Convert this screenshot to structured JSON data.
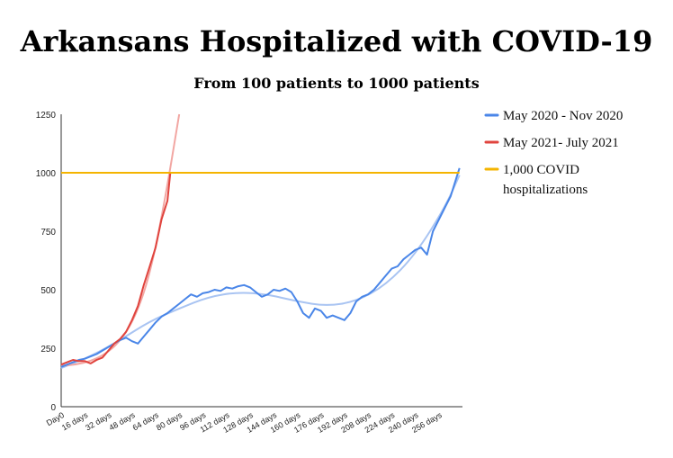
{
  "chart_data": {
    "type": "line",
    "title": "Arkansans Hospitalized with COVID-19",
    "subtitle": "From 100 patients to 1000 patients",
    "xlabel": "",
    "ylabel": "",
    "ylim": [
      0,
      1250
    ],
    "yticks": [
      "0",
      "250",
      "500",
      "750",
      "1000",
      "1250"
    ],
    "xlim": [
      0,
      272
    ],
    "xticks": [
      {
        "x": 0,
        "label": "Day0"
      },
      {
        "x": 16,
        "label": "16 days"
      },
      {
        "x": 32,
        "label": "32 days"
      },
      {
        "x": 48,
        "label": "48 days"
      },
      {
        "x": 64,
        "label": "64 days"
      },
      {
        "x": 80,
        "label": "80 days"
      },
      {
        "x": 96,
        "label": "96 days"
      },
      {
        "x": 112,
        "label": "112 days"
      },
      {
        "x": 128,
        "label": "128 days"
      },
      {
        "x": 144,
        "label": "144 days"
      },
      {
        "x": 160,
        "label": "160 days"
      },
      {
        "x": 176,
        "label": "176 days"
      },
      {
        "x": 192,
        "label": "192 days"
      },
      {
        "x": 208,
        "label": "208 days"
      },
      {
        "x": 224,
        "label": "224 days"
      },
      {
        "x": 240,
        "label": "240 days"
      },
      {
        "x": 256,
        "label": "256 days"
      }
    ],
    "grid": false,
    "legend_position": "right",
    "series": [
      {
        "name": "May 2020 - Nov 2020",
        "color": "#4a86e8",
        "x": [
          0,
          4,
          8,
          12,
          16,
          20,
          24,
          28,
          32,
          36,
          40,
          44,
          48,
          52,
          56,
          60,
          64,
          68,
          72,
          76,
          80,
          84,
          88,
          92,
          96,
          100,
          104,
          108,
          112,
          116,
          120,
          124,
          128,
          132,
          136,
          140,
          144,
          148,
          152,
          156,
          160,
          164,
          168,
          172,
          176,
          180,
          184,
          188,
          192,
          196,
          200,
          204,
          208,
          212,
          216,
          220,
          224,
          228,
          232,
          236,
          240,
          244,
          248,
          252,
          256,
          260,
          264,
          268,
          270
        ],
        "values": [
          170,
          180,
          190,
          200,
          205,
          215,
          225,
          240,
          255,
          270,
          285,
          295,
          280,
          270,
          300,
          330,
          360,
          385,
          400,
          420,
          440,
          460,
          480,
          470,
          485,
          490,
          500,
          495,
          510,
          505,
          515,
          520,
          510,
          490,
          470,
          480,
          500,
          495,
          505,
          490,
          450,
          400,
          380,
          420,
          410,
          380,
          390,
          380,
          370,
          400,
          450,
          470,
          480,
          500,
          530,
          560,
          590,
          600,
          630,
          650,
          670,
          680,
          650,
          750,
          800,
          850,
          900,
          980,
          1020
        ]
      },
      {
        "name": "May 2021- July 2021",
        "color": "#e0443e",
        "x": [
          0,
          4,
          8,
          12,
          16,
          20,
          24,
          28,
          32,
          36,
          40,
          44,
          48,
          52,
          56,
          60,
          64,
          68,
          72,
          74
        ],
        "values": [
          180,
          190,
          200,
          195,
          195,
          185,
          200,
          210,
          240,
          270,
          290,
          320,
          370,
          430,
          520,
          600,
          680,
          800,
          880,
          1000
        ]
      },
      {
        "name": "1,000 COVID hospitalizations",
        "color": "#f4b400",
        "x": [
          0,
          270
        ],
        "values": [
          1000,
          1000
        ]
      }
    ],
    "trendlines": [
      {
        "series": "May 2020 - Nov 2020",
        "color": "#a9c4f2",
        "x": [
          0,
          20,
          40,
          60,
          80,
          100,
          120,
          140,
          160,
          180,
          200,
          220,
          240,
          260,
          270
        ],
        "values": [
          165,
          215,
          285,
          365,
          420,
          470,
          490,
          480,
          450,
          430,
          450,
          520,
          650,
          850,
          990
        ]
      },
      {
        "series": "May 2021- July 2021",
        "color": "#f2a7a3",
        "x": [
          0,
          10,
          20,
          30,
          40,
          50,
          60,
          70,
          80
        ],
        "values": [
          175,
          180,
          195,
          225,
          280,
          380,
          560,
          870,
          1250
        ]
      }
    ],
    "legend": [
      {
        "label": "May 2020 - Nov 2020",
        "color": "#4a86e8"
      },
      {
        "label": "May 2021- July 2021",
        "color": "#e0443e"
      },
      {
        "label": "1,000 COVID",
        "label2": "hospitalizations",
        "color": "#f4b400"
      }
    ]
  }
}
